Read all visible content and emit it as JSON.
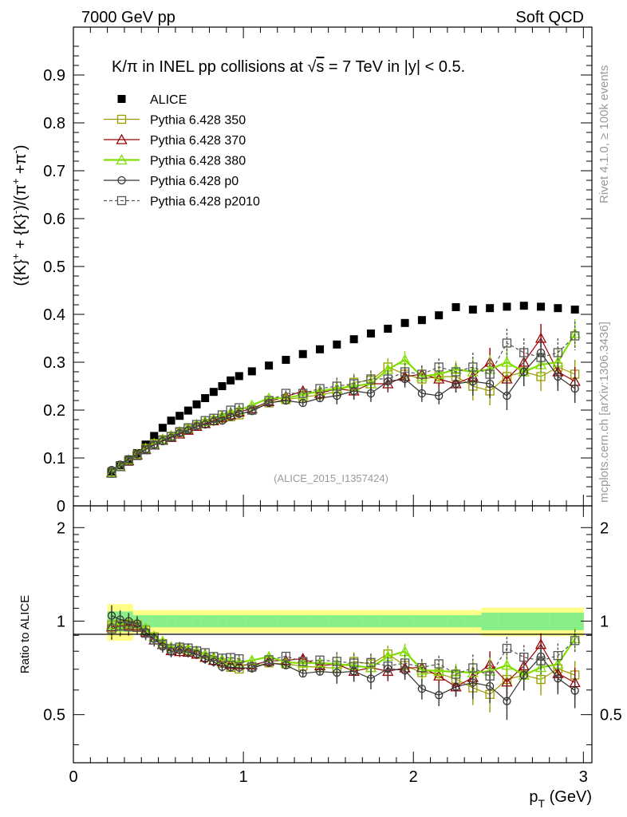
{
  "header": {
    "left": "7000 GeV pp",
    "right": "Soft QCD"
  },
  "side_text": {
    "rivet": "Rivet 4.1.0, ≥ 100k events",
    "mcplots": "mcplots.cern.ch [arXiv:1306.3436]"
  },
  "chart_data": {
    "type": "scatter",
    "title": "K/π in INEL pp collisions at √s =  7 TeV in |y| < 0.5.",
    "title_parts": {
      "prefix": "K/π in INEL pp collisions at ",
      "sqrt": "√",
      "s_var": "s",
      "suffix": " =  7 TeV in |y| < 0.5."
    },
    "ylabel_main": "({K}⁺ + {K}⁻)/(π⁺ + π⁻)",
    "ylabel_parts": {
      "a": "({K}",
      "sup1": "+",
      "b": " + {K}",
      "sup2": "-",
      "c": ")/(π",
      "sup3": "+",
      "d": " +π",
      "sup4": "-",
      "e": ")"
    },
    "ylabel_ratio": "Ratio to ALICE",
    "xlabel": "p_T (GeV)",
    "xlabel_parts": {
      "p": "p",
      "sub": "T",
      "unit": " (GeV)"
    },
    "analysis_id": "(ALICE_2015_I1357424)",
    "xlim": [
      0,
      3.05
    ],
    "ylim_main": [
      0,
      1.0
    ],
    "ylim_ratio": [
      0.35,
      2.35
    ],
    "x_ticks": [
      "0",
      "1",
      "2",
      "3"
    ],
    "y_ticks_main": [
      "0.1",
      "0.2",
      "0.3",
      "0.4",
      "0.5",
      "0.6",
      "0.7",
      "0.8",
      "0.9"
    ],
    "y_tick_zero": "0",
    "y_ticks_ratio": [
      "0.5",
      "1",
      "2"
    ],
    "x": [
      0.225,
      0.275,
      0.325,
      0.375,
      0.425,
      0.475,
      0.525,
      0.575,
      0.625,
      0.675,
      0.725,
      0.775,
      0.825,
      0.875,
      0.925,
      0.975,
      1.05,
      1.15,
      1.25,
      1.35,
      1.45,
      1.55,
      1.65,
      1.75,
      1.85,
      1.95,
      2.05,
      2.15,
      2.25,
      2.35,
      2.45,
      2.55,
      2.65,
      2.75,
      2.85,
      2.95
    ],
    "series": [
      {
        "name": "ALICE",
        "style": "data",
        "color": "#000000",
        "marker": "square-filled",
        "values": [
          0.072,
          0.085,
          0.097,
          0.11,
          0.128,
          0.146,
          0.163,
          0.178,
          0.188,
          0.199,
          0.212,
          0.225,
          0.238,
          0.25,
          0.262,
          0.271,
          0.281,
          0.293,
          0.305,
          0.317,
          0.327,
          0.337,
          0.348,
          0.36,
          0.37,
          0.382,
          0.388,
          0.398,
          0.415,
          0.41,
          0.413,
          0.416,
          0.418,
          0.416,
          0.413,
          0.41
        ]
      },
      {
        "name": "Pythia 6.428 350",
        "style": "solid",
        "color": "#999900",
        "marker": "square-open",
        "values": [
          0.07,
          0.083,
          0.095,
          0.107,
          0.12,
          0.13,
          0.138,
          0.145,
          0.153,
          0.16,
          0.166,
          0.172,
          0.178,
          0.183,
          0.186,
          0.19,
          0.2,
          0.215,
          0.222,
          0.227,
          0.232,
          0.238,
          0.258,
          0.262,
          0.29,
          0.275,
          0.265,
          0.27,
          0.27,
          0.25,
          0.24,
          0.27,
          0.28,
          0.27,
          0.29,
          0.275
        ]
      },
      {
        "name": "Pythia 6.428 370",
        "style": "solid",
        "color": "#990000",
        "marker": "triangle-open",
        "values": [
          0.069,
          0.082,
          0.094,
          0.106,
          0.118,
          0.127,
          0.137,
          0.143,
          0.15,
          0.158,
          0.166,
          0.172,
          0.178,
          0.185,
          0.19,
          0.196,
          0.203,
          0.218,
          0.228,
          0.24,
          0.235,
          0.245,
          0.24,
          0.255,
          0.255,
          0.27,
          0.275,
          0.265,
          0.255,
          0.27,
          0.3,
          0.265,
          0.3,
          0.35,
          0.28,
          0.26
        ]
      },
      {
        "name": "Pythia 6.428 380",
        "style": "solid",
        "color": "#80dd00",
        "marker": "triangle-open",
        "values": [
          0.07,
          0.083,
          0.096,
          0.108,
          0.12,
          0.13,
          0.14,
          0.147,
          0.155,
          0.162,
          0.17,
          0.176,
          0.182,
          0.188,
          0.195,
          0.2,
          0.21,
          0.225,
          0.225,
          0.232,
          0.24,
          0.245,
          0.25,
          0.255,
          0.285,
          0.305,
          0.27,
          0.275,
          0.285,
          0.28,
          0.285,
          0.3,
          0.28,
          0.295,
          0.3,
          0.36
        ]
      },
      {
        "name": "Pythia 6.428 p0",
        "style": "solid",
        "color": "#333333",
        "marker": "circle-open",
        "values": [
          0.075,
          0.086,
          0.097,
          0.108,
          0.118,
          0.128,
          0.135,
          0.142,
          0.152,
          0.158,
          0.166,
          0.17,
          0.176,
          0.178,
          0.186,
          0.192,
          0.198,
          0.215,
          0.22,
          0.215,
          0.225,
          0.23,
          0.24,
          0.235,
          0.26,
          0.265,
          0.235,
          0.23,
          0.255,
          0.26,
          0.255,
          0.23,
          0.28,
          0.32,
          0.27,
          0.245
        ]
      },
      {
        "name": "Pythia 6.428 p2010",
        "style": "dashed",
        "color": "#555555",
        "marker": "square-open",
        "values": [
          0.068,
          0.082,
          0.093,
          0.105,
          0.117,
          0.127,
          0.137,
          0.145,
          0.155,
          0.163,
          0.17,
          0.178,
          0.183,
          0.19,
          0.2,
          0.205,
          0.2,
          0.22,
          0.235,
          0.235,
          0.245,
          0.25,
          0.255,
          0.265,
          0.265,
          0.28,
          0.275,
          0.29,
          0.28,
          0.29,
          0.275,
          0.34,
          0.32,
          0.31,
          0.32,
          0.355
        ]
      }
    ]
  }
}
